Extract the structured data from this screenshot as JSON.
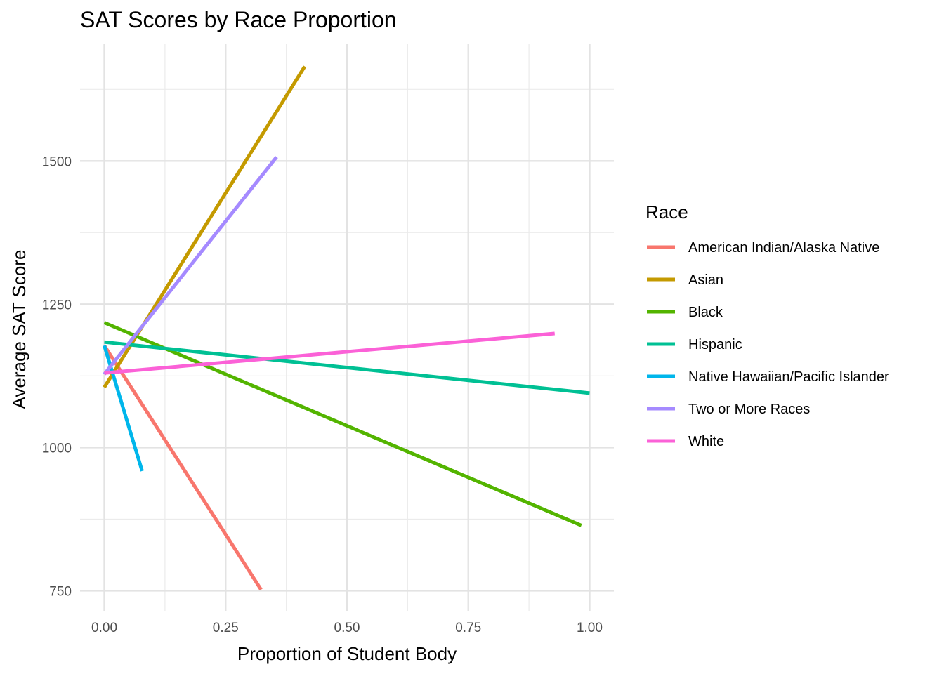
{
  "chart_data": {
    "type": "line",
    "title": "SAT Scores by Race Proportion",
    "xlabel": "Proportion of Student Body",
    "ylabel": "Average SAT Score",
    "xlim": [
      -0.05,
      1.05
    ],
    "ylim": [
      715,
      1705
    ],
    "x_ticks": [
      0,
      0.25,
      0.5,
      0.75,
      1.0
    ],
    "x_tick_labels": [
      "0.00",
      "0.25",
      "0.50",
      "0.75",
      "1.00"
    ],
    "x_minor_ticks": [
      0.125,
      0.375,
      0.625,
      0.875
    ],
    "y_ticks": [
      750,
      1000,
      1250,
      1500
    ],
    "y_tick_labels": [
      "750",
      "1000",
      "1250",
      "1500"
    ],
    "y_minor_ticks": [
      875,
      1125,
      1375,
      1625
    ],
    "grid": true,
    "legend_title": "Race",
    "legend_position": "right",
    "series": [
      {
        "name": "American Indian/Alaska Native",
        "color": "#F8766D",
        "x": [
          0.0,
          0.323
        ],
        "y": [
          1178,
          752
        ]
      },
      {
        "name": "Asian",
        "color": "#C49A00",
        "x": [
          0.0,
          0.413
        ],
        "y": [
          1105,
          1665
        ]
      },
      {
        "name": "Black",
        "color": "#53B400",
        "x": [
          0.0,
          0.983
        ],
        "y": [
          1218,
          864
        ]
      },
      {
        "name": "Hispanic",
        "color": "#00C094",
        "x": [
          0.0,
          1.0
        ],
        "y": [
          1184,
          1095
        ]
      },
      {
        "name": "Native Hawaiian/Pacific Islander",
        "color": "#00B6EB",
        "x": [
          0.0,
          0.078
        ],
        "y": [
          1178,
          959
        ]
      },
      {
        "name": "Two or More Races",
        "color": "#A58AFF",
        "x": [
          0.0,
          0.355
        ],
        "y": [
          1128,
          1507
        ]
      },
      {
        "name": "White",
        "color": "#FB61D7",
        "x": [
          0.0,
          0.928
        ],
        "y": [
          1130,
          1199
        ]
      }
    ]
  }
}
